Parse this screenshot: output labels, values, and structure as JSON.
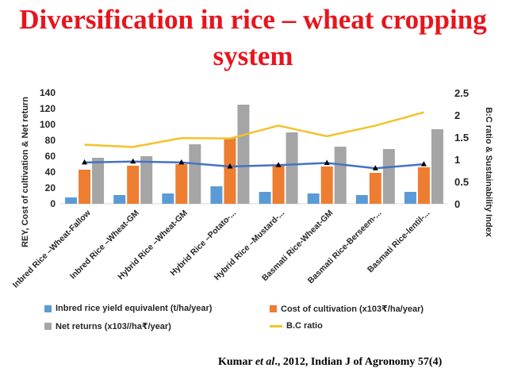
{
  "title": {
    "line1": "Diversification in rice – wheat cropping",
    "line2": "system"
  },
  "citation": {
    "author": "Kumar",
    "et_al": "et al",
    "rest": "., 2012, Indian J of Agronomy 57(4)"
  },
  "colors": {
    "title": "#e8141c",
    "yield": "#5b9bd5",
    "cost": "#ed7d31",
    "net": "#a5a5a5",
    "bc": "#f3c22b",
    "sust": "#4472c4"
  },
  "chart_data": {
    "type": "bar",
    "categories": [
      "Inbred Rice –Wheat-Fallow",
      "Inbred Rice –Wheat-GM",
      "Hybrid Rice –Wheat-GM",
      "Hybrid Rice –Potato-...",
      "Hybrid Rice –Mustard-...",
      "Basmati Rice-Wheat-GM",
      "Basmati Rice-Berseem-...",
      "Basmati Rice-lentil-..."
    ],
    "series": [
      {
        "name": "Inbred rice yield equivalent (t/ha/year)",
        "type": "bar",
        "axis": "left",
        "color": "#5b9bd5",
        "values": [
          8,
          11,
          13,
          22,
          15,
          13,
          11,
          15
        ]
      },
      {
        "name": "Cost of cultivation (x103₹/ha/year)",
        "type": "bar",
        "axis": "left",
        "color": "#ed7d31",
        "values": [
          43,
          48,
          50,
          83,
          48,
          47,
          39,
          46
        ]
      },
      {
        "name": "Net returns (x103//ha₹/year)",
        "type": "bar",
        "axis": "left",
        "color": "#a5a5a5",
        "values": [
          58,
          60,
          75,
          125,
          90,
          72,
          69,
          94
        ]
      },
      {
        "name": "B.C ratio",
        "type": "line",
        "axis": "right",
        "color": "#f3c22b",
        "values": [
          1.33,
          1.28,
          1.48,
          1.47,
          1.76,
          1.52,
          1.76,
          2.06
        ]
      },
      {
        "type": "line",
        "axis": "right",
        "color": "#4472c4",
        "marker": "triangle",
        "values": [
          0.93,
          0.95,
          0.93,
          0.84,
          0.87,
          0.92,
          0.8,
          0.89
        ]
      }
    ],
    "ylabel": "REY, Cost of cultivation & Net return",
    "y2label": "B:C ratio & Sustainability Index",
    "ylim": [
      0,
      140
    ],
    "yticks": [
      0,
      20,
      40,
      60,
      80,
      100,
      120,
      140
    ],
    "y2lim": [
      0,
      2.5
    ],
    "y2ticks": [
      "0",
      "0.5",
      "1",
      "1.5",
      "2",
      "2.5"
    ],
    "grid": false,
    "legend_position": "bottom"
  }
}
